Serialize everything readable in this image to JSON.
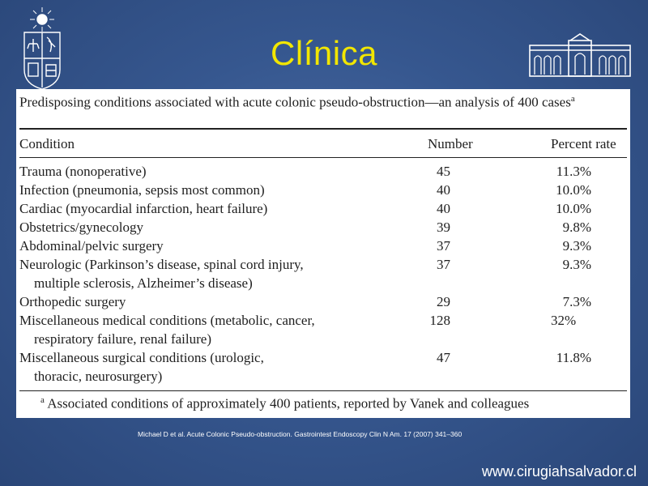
{
  "slide": {
    "title": "Clínica",
    "reference": "Michael D et al. Acute Colonic Pseudo-obstruction. Gastrointest Endoscopy Clin N Am. 17 (2007) 341–360",
    "website": "www.cirugiahsalvador.cl",
    "title_color": "#f2e600",
    "background_color": "#36578f"
  },
  "table": {
    "caption": "Predisposing conditions associated with acute colonic pseudo-obstruction—an analysis of 400 cases",
    "caption_mark": "a",
    "headers": {
      "condition": "Condition",
      "number": "Number",
      "percent": "Percent rate"
    },
    "rows": [
      {
        "line1": "Trauma (nonoperative)",
        "line2": "",
        "number": "45",
        "percent": "11.3%"
      },
      {
        "line1": "Infection (pneumonia, sepsis most common)",
        "line2": "",
        "number": "40",
        "percent": "10.0%"
      },
      {
        "line1": "Cardiac (myocardial infarction, heart failure)",
        "line2": "",
        "number": "40",
        "percent": "10.0%"
      },
      {
        "line1": "Obstetrics/gynecology",
        "line2": "",
        "number": "39",
        "percent": "9.8%"
      },
      {
        "line1": "Abdominal/pelvic surgery",
        "line2": "",
        "number": "37",
        "percent": "9.3%"
      },
      {
        "line1": "Neurologic (Parkinson’s disease, spinal cord injury,",
        "line2": "multiple sclerosis, Alzheimer’s disease)",
        "number": "37",
        "percent": "9.3%"
      },
      {
        "line1": "Orthopedic surgery",
        "line2": "",
        "number": "29",
        "percent": "7.3%"
      },
      {
        "line1": "Miscellaneous medical conditions (metabolic, cancer,",
        "line2": "respiratory failure, renal failure)",
        "number": "128",
        "percent": "32%"
      },
      {
        "line1": "Miscellaneous surgical conditions (urologic,",
        "line2": "thoracic, neurosurgery)",
        "number": "47",
        "percent": "11.8%"
      }
    ],
    "footnote_mark": "a",
    "footnote": "Associated conditions of approximately 400 patients, reported by Vanek and colleagues"
  },
  "logos": {
    "left": "university-crest-icon",
    "right": "hospital-building-icon"
  }
}
